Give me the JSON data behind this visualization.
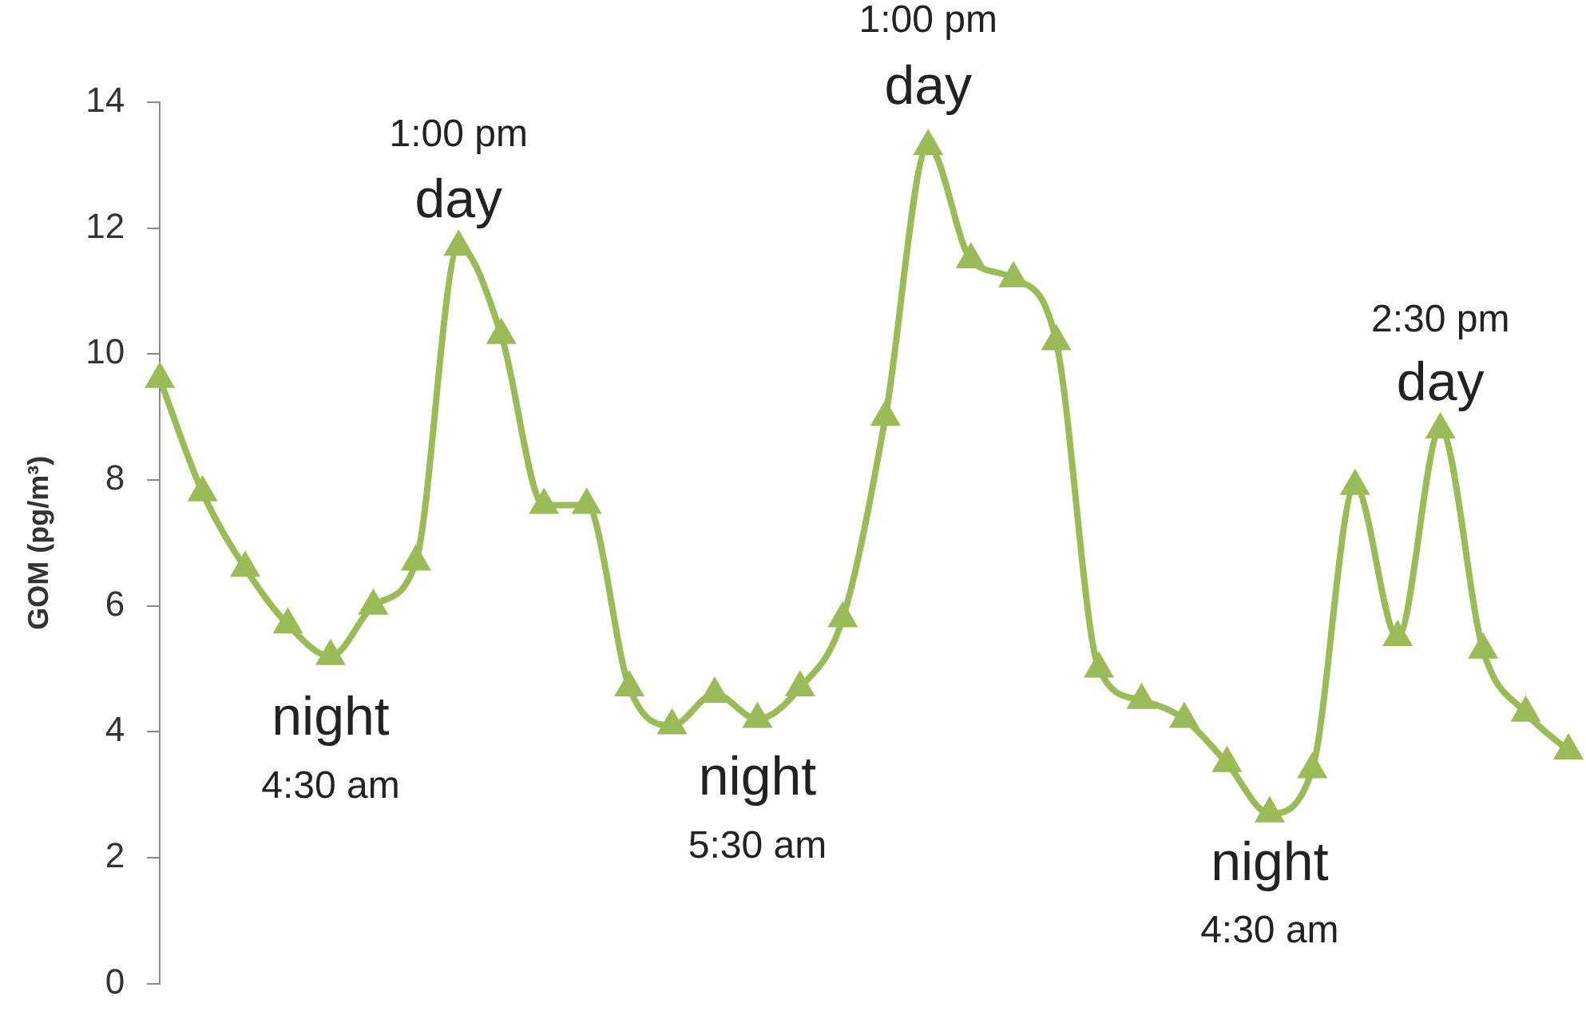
{
  "chart_data": {
    "type": "line",
    "ylabel": "GOM (pg/m³)",
    "categories": [
      null,
      null,
      null,
      null,
      null,
      null,
      null,
      null,
      null,
      null,
      null,
      null,
      null,
      null,
      null,
      null,
      null,
      null,
      null,
      null,
      null,
      null,
      null,
      null,
      null,
      null,
      null,
      null,
      null,
      null,
      null,
      null,
      null,
      null
    ],
    "series": [
      {
        "color": "#9bbb59",
        "values": [
          9.6,
          7.8,
          6.6,
          5.7,
          5.2,
          6.0,
          6.7,
          11.7,
          10.3,
          7.6,
          7.6,
          4.7,
          4.1,
          4.6,
          4.2,
          4.7,
          5.8,
          9.0,
          13.3,
          11.5,
          11.2,
          10.2,
          5.0,
          4.5,
          4.2,
          3.5,
          2.7,
          3.4,
          7.9,
          5.5,
          8.8,
          5.3,
          4.3,
          3.7
        ]
      }
    ],
    "ylim": [
      0,
      14
    ],
    "yticks": [
      0,
      2,
      4,
      6,
      8,
      10,
      12,
      14
    ],
    "grid": false,
    "legend": false,
    "marker": "triangle",
    "line_style": "solid",
    "tick_labels": "y",
    "annotations": [
      "1:00 pm",
      "day",
      "night",
      "4:30 am",
      "night",
      "5:30 am",
      "1:00 pm",
      "day",
      "2:30 pm",
      "day",
      "night",
      "4:30 am"
    ]
  }
}
